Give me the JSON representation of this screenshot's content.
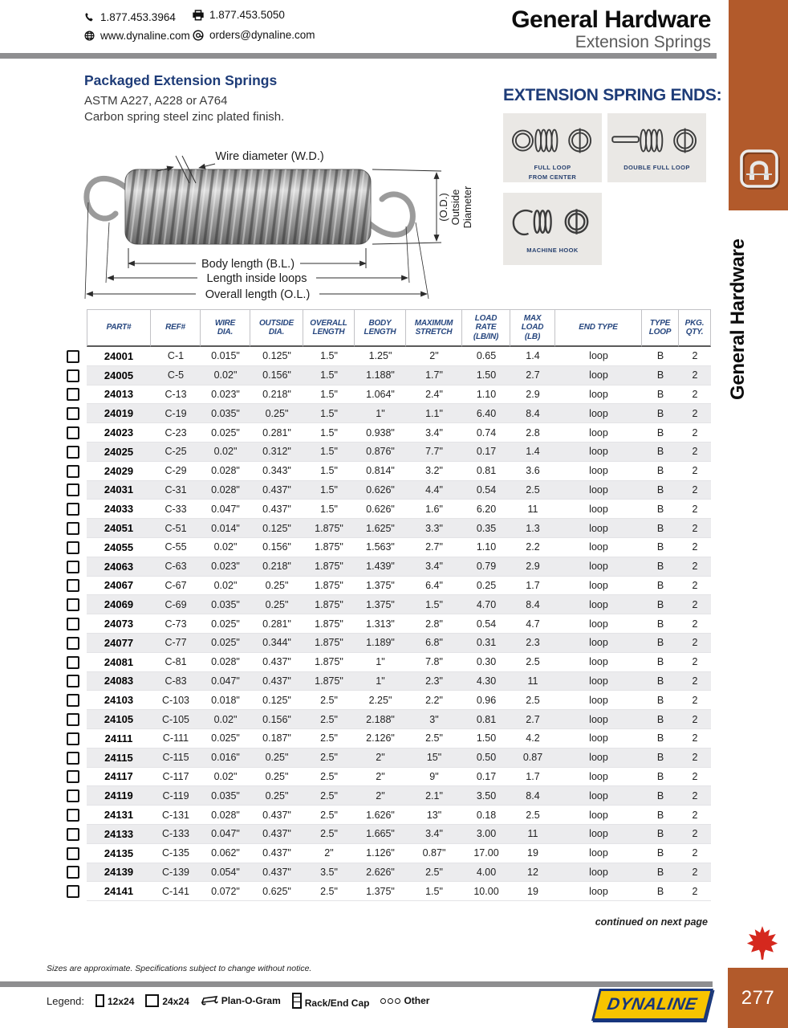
{
  "colors": {
    "accent": "#b25a2b",
    "navy": "#1e3c78",
    "bar_gray": "#8e8e90",
    "stripe": "#ececee",
    "leaf_red": "#d5281e",
    "logo_yellow": "#f7c400",
    "logo_blue": "#16357d"
  },
  "header": {
    "phone": "1.877.453.3964",
    "fax": "1.877.453.5050",
    "website": "www.dynaline.com",
    "email": "orders@dynaline.com",
    "title": "General Hardware",
    "subtitle": "Extension Springs"
  },
  "sidebar": {
    "vertical_label": "General Hardware",
    "page_number": "277"
  },
  "intro": {
    "heading": "Packaged Extension Springs",
    "line1": "ASTM A227, A228 or A764",
    "line2": "Carbon spring steel zinc plated finish."
  },
  "diagram": {
    "wire_label": "Wire diameter (W.D.)",
    "od_label_1": "(O.D.)",
    "od_label_2": "Outside",
    "od_label_3": "Diameter",
    "body_label": "Body length (B.L.)",
    "inside_label": "Length inside loops",
    "overall_label": "Overall length (O.L.)"
  },
  "spring_ends": {
    "heading": "EXTENSION SPRING ENDS:",
    "items": [
      {
        "icon": "full-loop-from-center",
        "caption": "FULL LOOP\nFROM CENTER"
      },
      {
        "icon": "double-full-loop",
        "caption": "DOUBLE FULL LOOP"
      },
      {
        "icon": "machine-hook",
        "caption": "MACHINE HOOK"
      }
    ]
  },
  "table": {
    "headers": [
      [
        "PART#"
      ],
      [
        "REF#"
      ],
      [
        "WIRE",
        "DIA."
      ],
      [
        "OUTSIDE",
        "DIA."
      ],
      [
        "OVERALL",
        "LENGTH"
      ],
      [
        "BODY",
        "LENGTH"
      ],
      [
        "MAXIMUM",
        "STRETCH"
      ],
      [
        "LOAD",
        "RATE",
        "(LB/IN)"
      ],
      [
        "MAX",
        "LOAD",
        "(LB)"
      ],
      [
        "END TYPE"
      ],
      [
        "TYPE",
        "LOOP"
      ],
      [
        "PKG.",
        "QTY."
      ]
    ],
    "rows": [
      [
        "24001",
        "C-1",
        "0.015\"",
        "0.125\"",
        "1.5\"",
        "1.25\"",
        "2\"",
        "0.65",
        "1.4",
        "loop",
        "B",
        "2"
      ],
      [
        "24005",
        "C-5",
        "0.02\"",
        "0.156\"",
        "1.5\"",
        "1.188\"",
        "1.7\"",
        "1.50",
        "2.7",
        "loop",
        "B",
        "2"
      ],
      [
        "24013",
        "C-13",
        "0.023\"",
        "0.218\"",
        "1.5\"",
        "1.064\"",
        "2.4\"",
        "1.10",
        "2.9",
        "loop",
        "B",
        "2"
      ],
      [
        "24019",
        "C-19",
        "0.035\"",
        "0.25\"",
        "1.5\"",
        "1\"",
        "1.1\"",
        "6.40",
        "8.4",
        "loop",
        "B",
        "2"
      ],
      [
        "24023",
        "C-23",
        "0.025\"",
        "0.281\"",
        "1.5\"",
        "0.938\"",
        "3.4\"",
        "0.74",
        "2.8",
        "loop",
        "B",
        "2"
      ],
      [
        "24025",
        "C-25",
        "0.02\"",
        "0.312\"",
        "1.5\"",
        "0.876\"",
        "7.7\"",
        "0.17",
        "1.4",
        "loop",
        "B",
        "2"
      ],
      [
        "24029",
        "C-29",
        "0.028\"",
        "0.343\"",
        "1.5\"",
        "0.814\"",
        "3.2\"",
        "0.81",
        "3.6",
        "loop",
        "B",
        "2"
      ],
      [
        "24031",
        "C-31",
        "0.028\"",
        "0.437\"",
        "1.5\"",
        "0.626\"",
        "4.4\"",
        "0.54",
        "2.5",
        "loop",
        "B",
        "2"
      ],
      [
        "24033",
        "C-33",
        "0.047\"",
        "0.437\"",
        "1.5\"",
        "0.626\"",
        "1.6\"",
        "6.20",
        "11",
        "loop",
        "B",
        "2"
      ],
      [
        "24051",
        "C-51",
        "0.014\"",
        "0.125\"",
        "1.875\"",
        "1.625\"",
        "3.3\"",
        "0.35",
        "1.3",
        "loop",
        "B",
        "2"
      ],
      [
        "24055",
        "C-55",
        "0.02\"",
        "0.156\"",
        "1.875\"",
        "1.563\"",
        "2.7\"",
        "1.10",
        "2.2",
        "loop",
        "B",
        "2"
      ],
      [
        "24063",
        "C-63",
        "0.023\"",
        "0.218\"",
        "1.875\"",
        "1.439\"",
        "3.4\"",
        "0.79",
        "2.9",
        "loop",
        "B",
        "2"
      ],
      [
        "24067",
        "C-67",
        "0.02\"",
        "0.25\"",
        "1.875\"",
        "1.375\"",
        "6.4\"",
        "0.25",
        "1.7",
        "loop",
        "B",
        "2"
      ],
      [
        "24069",
        "C-69",
        "0.035\"",
        "0.25\"",
        "1.875\"",
        "1.375\"",
        "1.5\"",
        "4.70",
        "8.4",
        "loop",
        "B",
        "2"
      ],
      [
        "24073",
        "C-73",
        "0.025\"",
        "0.281\"",
        "1.875\"",
        "1.313\"",
        "2.8\"",
        "0.54",
        "4.7",
        "loop",
        "B",
        "2"
      ],
      [
        "24077",
        "C-77",
        "0.025\"",
        "0.344\"",
        "1.875\"",
        "1.189\"",
        "6.8\"",
        "0.31",
        "2.3",
        "loop",
        "B",
        "2"
      ],
      [
        "24081",
        "C-81",
        "0.028\"",
        "0.437\"",
        "1.875\"",
        "1\"",
        "7.8\"",
        "0.30",
        "2.5",
        "loop",
        "B",
        "2"
      ],
      [
        "24083",
        "C-83",
        "0.047\"",
        "0.437\"",
        "1.875\"",
        "1\"",
        "2.3\"",
        "4.30",
        "11",
        "loop",
        "B",
        "2"
      ],
      [
        "24103",
        "C-103",
        "0.018\"",
        "0.125\"",
        "2.5\"",
        "2.25\"",
        "2.2\"",
        "0.96",
        "2.5",
        "loop",
        "B",
        "2"
      ],
      [
        "24105",
        "C-105",
        "0.02\"",
        "0.156\"",
        "2.5\"",
        "2.188\"",
        "3\"",
        "0.81",
        "2.7",
        "loop",
        "B",
        "2"
      ],
      [
        "24111",
        "C-111",
        "0.025\"",
        "0.187\"",
        "2.5\"",
        "2.126\"",
        "2.5\"",
        "1.50",
        "4.2",
        "loop",
        "B",
        "2"
      ],
      [
        "24115",
        "C-115",
        "0.016\"",
        "0.25\"",
        "2.5\"",
        "2\"",
        "15\"",
        "0.50",
        "0.87",
        "loop",
        "B",
        "2"
      ],
      [
        "24117",
        "C-117",
        "0.02\"",
        "0.25\"",
        "2.5\"",
        "2\"",
        "9\"",
        "0.17",
        "1.7",
        "loop",
        "B",
        "2"
      ],
      [
        "24119",
        "C-119",
        "0.035\"",
        "0.25\"",
        "2.5\"",
        "2\"",
        "2.1\"",
        "3.50",
        "8.4",
        "loop",
        "B",
        "2"
      ],
      [
        "24131",
        "C-131",
        "0.028\"",
        "0.437\"",
        "2.5\"",
        "1.626\"",
        "13\"",
        "0.18",
        "2.5",
        "loop",
        "B",
        "2"
      ],
      [
        "24133",
        "C-133",
        "0.047\"",
        "0.437\"",
        "2.5\"",
        "1.665\"",
        "3.4\"",
        "3.00",
        "11",
        "loop",
        "B",
        "2"
      ],
      [
        "24135",
        "C-135",
        "0.062\"",
        "0.437\"",
        "2\"",
        "1.126\"",
        "0.87\"",
        "17.00",
        "19",
        "loop",
        "B",
        "2"
      ],
      [
        "24139",
        "C-139",
        "0.054\"",
        "0.437\"",
        "3.5\"",
        "2.626\"",
        "2.5\"",
        "4.00",
        "12",
        "loop",
        "B",
        "2"
      ],
      [
        "24141",
        "C-141",
        "0.072\"",
        "0.625\"",
        "2.5\"",
        "1.375\"",
        "1.5\"",
        "10.00",
        "19",
        "loop",
        "B",
        "2"
      ]
    ],
    "continued": "continued on next page"
  },
  "footer": {
    "note": "Sizes are approximate. Specifications subject to change without notice.",
    "legend_label": "Legend:",
    "legend_items": [
      {
        "icon": "box-12x24",
        "label": "12x24"
      },
      {
        "icon": "box-24x24",
        "label": "24x24"
      },
      {
        "icon": "plan-o-gram",
        "label": "Plan-O-Gram"
      },
      {
        "icon": "rack-end-cap",
        "label": "Rack/End Cap"
      },
      {
        "icon": "dots-other",
        "label": "Other"
      }
    ],
    "brand": "DYNALINE"
  }
}
